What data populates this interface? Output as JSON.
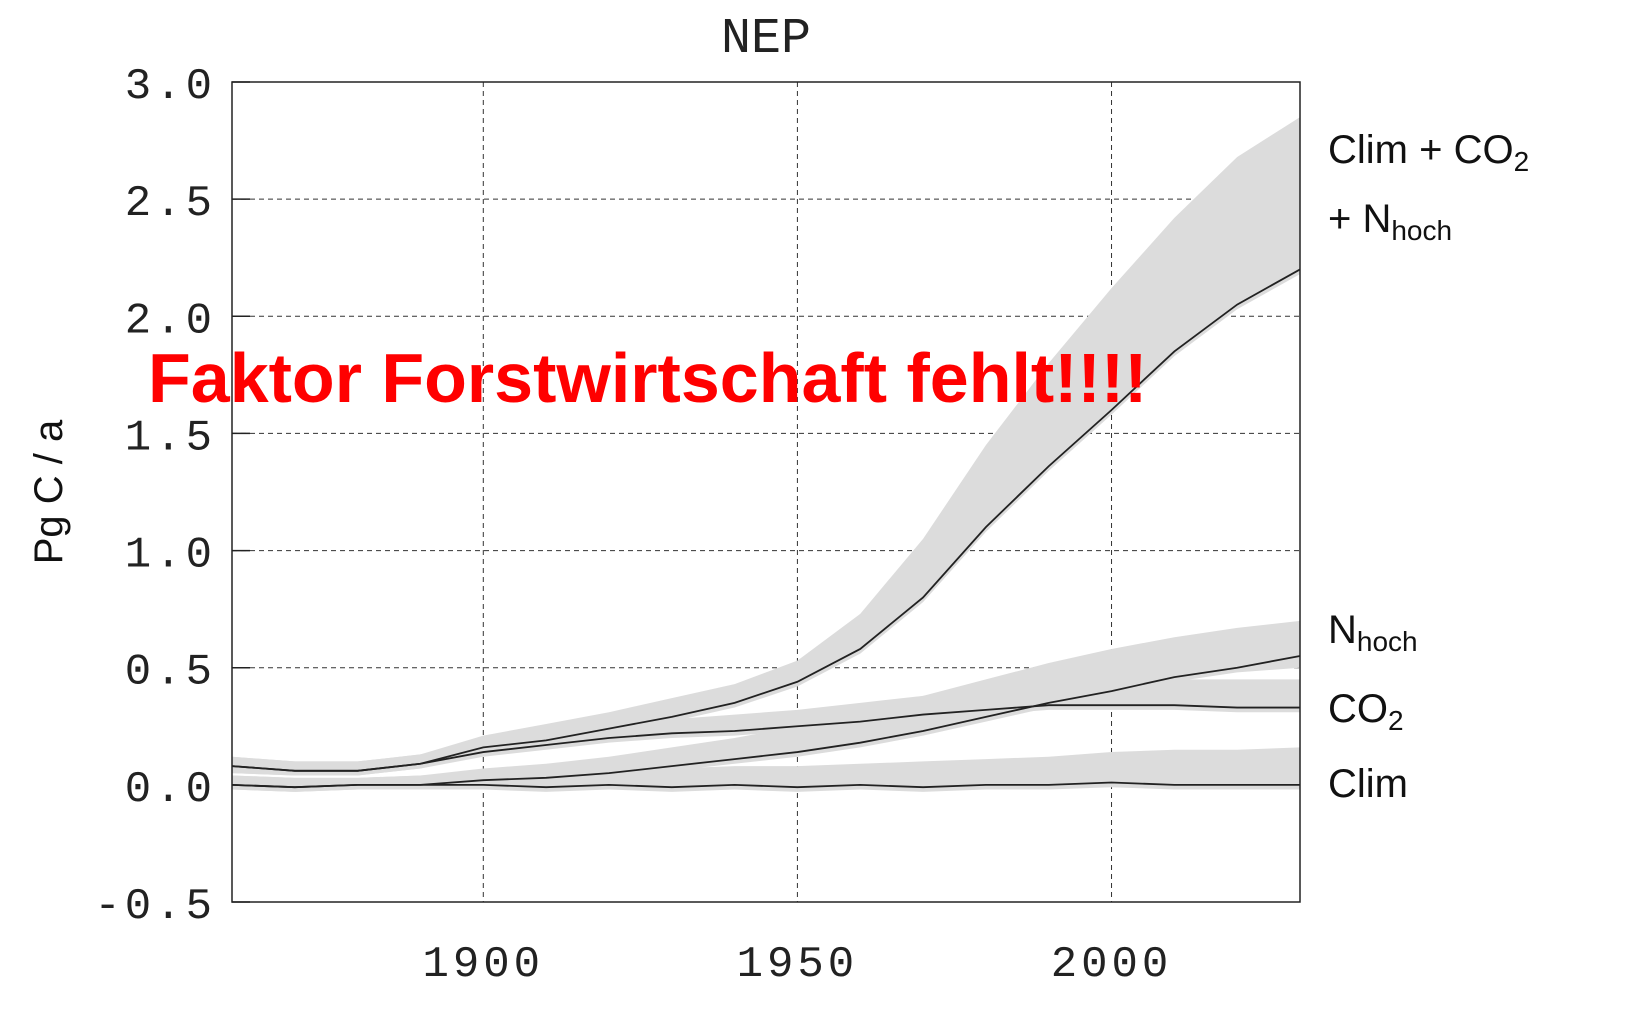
{
  "chart_data": {
    "type": "line",
    "title": "NEP",
    "y_label": "Pg C / a",
    "annotation": "Faktor Forstwirtschaft fehlt!!!!",
    "x": [
      1860,
      1870,
      1880,
      1890,
      1900,
      1910,
      1920,
      1930,
      1940,
      1950,
      1960,
      1970,
      1980,
      1990,
      2000,
      2010,
      2020,
      2030
    ],
    "xlim": [
      1860,
      2030
    ],
    "xticks": [
      1900,
      1950,
      2000
    ],
    "ylim": [
      -0.5,
      3.0
    ],
    "yticks": [
      {
        "value": 3,
        "label": "3.0"
      },
      2.5,
      {
        "value": 2,
        "label": "2.0"
      },
      1.5,
      {
        "value": 1,
        "label": "1.0"
      },
      0.5,
      {
        "value": 0,
        "label": "0.0"
      },
      -0.5
    ],
    "grid": true,
    "line_color": "#222222",
    "band_color": "#dcdcdc",
    "series": [
      {
        "name": [
          [
            "Clim + CO",
            "2"
          ],
          [
            "+ N",
            "hoch"
          ]
        ],
        "values": [
          0.08,
          0.06,
          0.06,
          0.09,
          0.16,
          0.19,
          0.24,
          0.29,
          0.35,
          0.44,
          0.58,
          0.8,
          1.1,
          1.36,
          1.6,
          1.85,
          2.05,
          2.2
        ],
        "high": [
          0.12,
          0.1,
          0.1,
          0.13,
          0.21,
          0.26,
          0.31,
          0.37,
          0.43,
          0.53,
          0.73,
          1.05,
          1.45,
          1.8,
          2.12,
          2.42,
          2.68,
          2.85
        ],
        "low": [
          0.05,
          0.04,
          0.04,
          0.07,
          0.13,
          0.17,
          0.22,
          0.27,
          0.33,
          0.42,
          0.56,
          0.78,
          1.08,
          1.34,
          1.58,
          1.83,
          2.03,
          2.18
        ]
      },
      {
        "name": [
          [
            "N",
            "hoch"
          ]
        ],
        "values": [
          0.0,
          -0.01,
          0.0,
          0.0,
          0.02,
          0.03,
          0.05,
          0.08,
          0.11,
          0.14,
          0.18,
          0.23,
          0.29,
          0.35,
          0.4,
          0.46,
          0.5,
          0.55
        ],
        "high": [
          0.04,
          0.03,
          0.03,
          0.04,
          0.07,
          0.09,
          0.12,
          0.16,
          0.2,
          0.25,
          0.32,
          0.38,
          0.45,
          0.52,
          0.58,
          0.63,
          0.67,
          0.7
        ],
        "low": [
          -0.02,
          -0.03,
          -0.02,
          -0.02,
          0.0,
          0.01,
          0.03,
          0.06,
          0.09,
          0.12,
          0.16,
          0.21,
          0.27,
          0.33,
          0.38,
          0.44,
          0.48,
          0.5
        ]
      },
      {
        "name": [
          [
            "CO",
            "2"
          ]
        ],
        "values": [
          0.08,
          0.06,
          0.06,
          0.09,
          0.14,
          0.17,
          0.2,
          0.22,
          0.23,
          0.25,
          0.27,
          0.3,
          0.32,
          0.34,
          0.34,
          0.34,
          0.33,
          0.33
        ],
        "high": [
          0.12,
          0.1,
          0.1,
          0.13,
          0.18,
          0.22,
          0.25,
          0.28,
          0.3,
          0.32,
          0.35,
          0.38,
          0.41,
          0.44,
          0.45,
          0.45,
          0.45,
          0.45
        ],
        "low": [
          0.05,
          0.04,
          0.04,
          0.07,
          0.12,
          0.15,
          0.18,
          0.2,
          0.21,
          0.23,
          0.25,
          0.28,
          0.3,
          0.32,
          0.32,
          0.32,
          0.31,
          0.31
        ]
      },
      {
        "name": [
          [
            "Clim"
          ]
        ],
        "values": [
          0.0,
          -0.01,
          0.0,
          0.0,
          0.0,
          -0.01,
          0.0,
          -0.01,
          0.0,
          -0.01,
          0.0,
          -0.01,
          0.0,
          0.0,
          0.01,
          0.0,
          0.0,
          0.0
        ],
        "high": [
          0.04,
          0.03,
          0.03,
          0.04,
          0.05,
          0.05,
          0.06,
          0.07,
          0.08,
          0.08,
          0.09,
          0.1,
          0.11,
          0.12,
          0.14,
          0.15,
          0.15,
          0.16
        ],
        "low": [
          -0.02,
          -0.03,
          -0.02,
          -0.02,
          -0.02,
          -0.03,
          -0.02,
          -0.03,
          -0.02,
          -0.03,
          -0.02,
          -0.03,
          -0.02,
          -0.02,
          -0.01,
          -0.02,
          -0.02,
          -0.02
        ]
      }
    ]
  }
}
